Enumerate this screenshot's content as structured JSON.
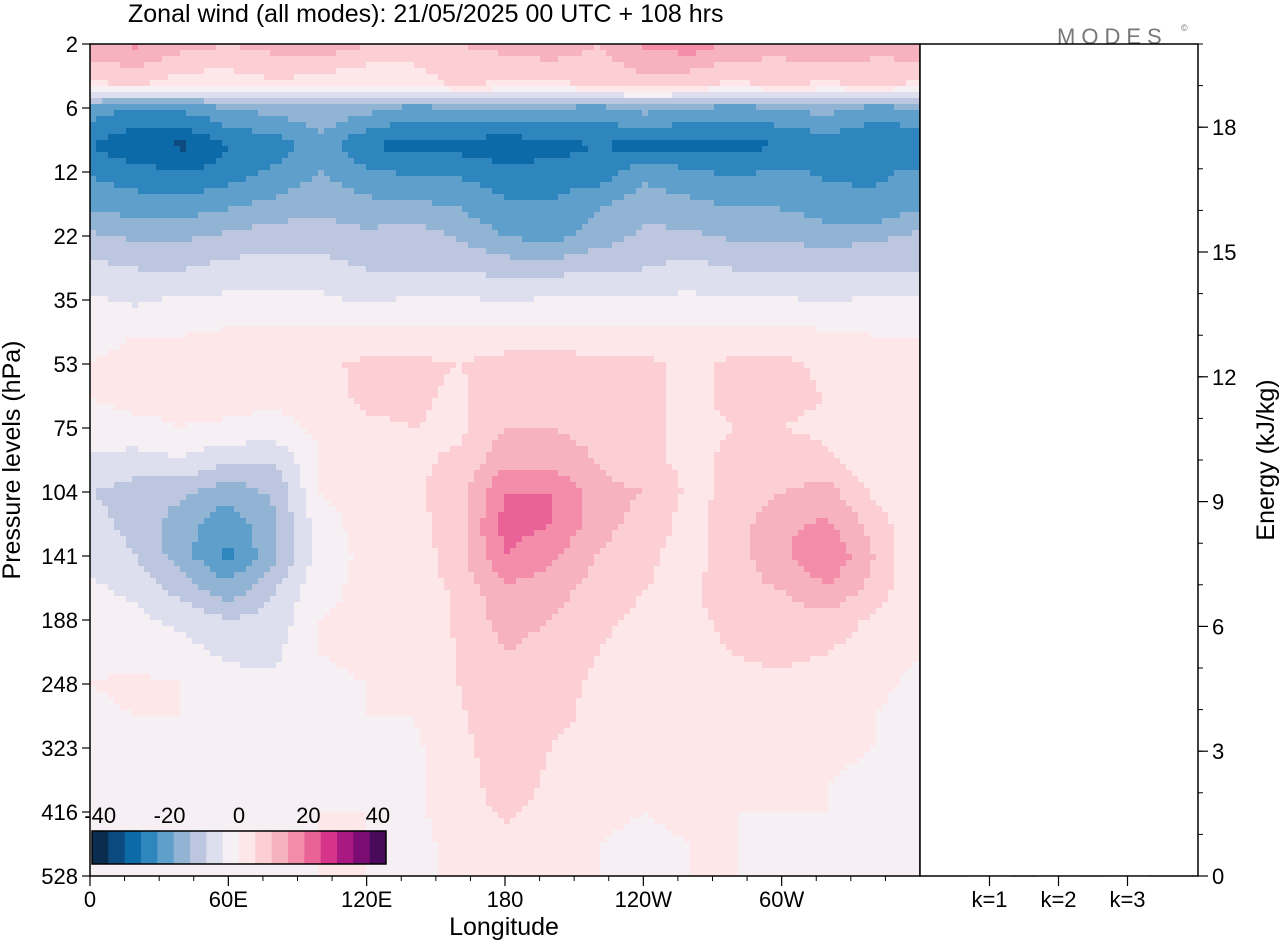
{
  "header": {
    "title": "Zonal wind (all modes):  21/05/2025  00 UTC  + 108 hrs",
    "logo_text": "MODES©"
  },
  "chart_data": [
    {
      "type": "heatmap",
      "title": "Zonal wind (all modes):  21/05/2025  00 UTC  + 108 hrs",
      "xlabel": "Longitude",
      "ylabel": "Pressure levels (hPa)",
      "x_ticks": [
        "0",
        "60E",
        "120E",
        "180",
        "120W",
        "60W"
      ],
      "y_ticks": [
        "2",
        "6",
        "12",
        "22",
        "35",
        "53",
        "75",
        "104",
        "141",
        "188",
        "248",
        "323",
        "416",
        "528"
      ],
      "xlim_deg": [
        0,
        360
      ],
      "colorbar": {
        "labels": [
          "-40",
          "-20",
          "0",
          "20",
          "40"
        ],
        "range": [
          -40,
          40
        ],
        "levels": [
          -40,
          -35,
          -30,
          -25,
          -20,
          -15,
          -10,
          -5,
          0,
          5,
          10,
          15,
          20,
          25,
          30,
          35,
          40
        ],
        "colors": [
          "#0a2d4f",
          "#0c4a7f",
          "#0d6aa8",
          "#2f86bf",
          "#5e9fcb",
          "#91b4d4",
          "#bcc6df",
          "#dedfee",
          "#f6eff4",
          "#fde7e8",
          "#fbcfd4",
          "#f7b2bf",
          "#f48daa",
          "#ea6398",
          "#d6338b",
          "#a91981",
          "#7a0c74",
          "#4a0a5c"
        ]
      },
      "approx_field": {
        "rows_hpa": [
          2,
          4,
          6,
          9,
          12,
          17,
          22,
          28,
          35,
          44,
          53,
          64,
          75,
          90,
          104,
          122,
          141,
          165,
          188,
          218,
          248,
          285,
          323,
          370,
          416,
          470,
          528
        ],
        "cols_deg": [
          0,
          20,
          40,
          60,
          80,
          100,
          120,
          140,
          160,
          180,
          200,
          220,
          240,
          260,
          280,
          300,
          320,
          340,
          360
        ],
        "values": [
          [
            14,
            16,
            12,
            10,
            12,
            14,
            10,
            8,
            10,
            12,
            14,
            10,
            16,
            18,
            14,
            12,
            16,
            12,
            14
          ],
          [
            4,
            6,
            2,
            2,
            4,
            2,
            0,
            2,
            6,
            4,
            4,
            6,
            8,
            6,
            4,
            6,
            4,
            6,
            4
          ],
          [
            -22,
            -26,
            -24,
            -20,
            -18,
            -16,
            -18,
            -22,
            -20,
            -18,
            -20,
            -22,
            -18,
            -20,
            -22,
            -20,
            -18,
            -22,
            -20
          ],
          [
            -30,
            -34,
            -36,
            -30,
            -28,
            -22,
            -30,
            -32,
            -32,
            -34,
            -32,
            -30,
            -32,
            -32,
            -32,
            -30,
            -28,
            -30,
            -30
          ],
          [
            -26,
            -28,
            -30,
            -28,
            -24,
            -20,
            -24,
            -26,
            -26,
            -28,
            -28,
            -28,
            -22,
            -24,
            -26,
            -24,
            -26,
            -26,
            -24
          ],
          [
            -20,
            -22,
            -22,
            -20,
            -18,
            -16,
            -18,
            -18,
            -20,
            -24,
            -24,
            -20,
            -16,
            -18,
            -20,
            -20,
            -22,
            -24,
            -20
          ],
          [
            -14,
            -16,
            -16,
            -14,
            -12,
            -12,
            -14,
            -12,
            -16,
            -20,
            -22,
            -18,
            -14,
            -14,
            -16,
            -16,
            -18,
            -16,
            -14
          ],
          [
            -8,
            -10,
            -10,
            -8,
            -8,
            -8,
            -10,
            -10,
            -10,
            -12,
            -12,
            -10,
            -10,
            -8,
            -10,
            -10,
            -10,
            -10,
            -10
          ],
          [
            -4,
            -6,
            -4,
            -4,
            -4,
            -4,
            -6,
            -4,
            -4,
            -6,
            -4,
            -4,
            -4,
            -4,
            -4,
            -4,
            -6,
            -4,
            -4
          ],
          [
            -1,
            0,
            0,
            1,
            1,
            2,
            2,
            2,
            2,
            2,
            2,
            2,
            2,
            2,
            2,
            2,
            1,
            0,
            0
          ],
          [
            0,
            1,
            1,
            2,
            1,
            4,
            6,
            6,
            5,
            7,
            8,
            6,
            6,
            4,
            6,
            6,
            4,
            2,
            0
          ],
          [
            0,
            1,
            1,
            2,
            1,
            3,
            6,
            6,
            4,
            8,
            9,
            7,
            6,
            4,
            6,
            6,
            5,
            2,
            0
          ],
          [
            -2,
            -1,
            0,
            -1,
            -2,
            1,
            4,
            5,
            4,
            10,
            10,
            8,
            6,
            4,
            5,
            5,
            4,
            2,
            0
          ],
          [
            -6,
            -8,
            -6,
            -10,
            -10,
            0,
            3,
            4,
            6,
            14,
            14,
            10,
            6,
            4,
            6,
            8,
            6,
            2,
            0
          ],
          [
            -10,
            -12,
            -14,
            -18,
            -14,
            0,
            2,
            4,
            8,
            20,
            20,
            12,
            10,
            4,
            6,
            10,
            12,
            4,
            0
          ],
          [
            -8,
            -12,
            -18,
            -24,
            -16,
            -2,
            2,
            3,
            8,
            22,
            20,
            12,
            8,
            3,
            8,
            14,
            16,
            8,
            0
          ],
          [
            -6,
            -10,
            -18,
            -26,
            -16,
            -2,
            1,
            2,
            8,
            20,
            16,
            10,
            6,
            3,
            8,
            14,
            20,
            10,
            0
          ],
          [
            -4,
            -6,
            -12,
            -18,
            -10,
            -1,
            1,
            2,
            6,
            14,
            12,
            8,
            5,
            4,
            8,
            10,
            14,
            8,
            0
          ],
          [
            -2,
            -4,
            -6,
            -10,
            -8,
            0,
            1,
            2,
            6,
            12,
            10,
            6,
            4,
            4,
            6,
            8,
            8,
            4,
            0
          ],
          [
            -1,
            -2,
            -3,
            -6,
            -6,
            0,
            1,
            1,
            5,
            10,
            8,
            5,
            3,
            4,
            5,
            6,
            5,
            2,
            0
          ],
          [
            0,
            1,
            0,
            -3,
            -4,
            -1,
            0,
            1,
            5,
            10,
            7,
            4,
            3,
            3,
            4,
            4,
            3,
            1,
            -1
          ],
          [
            -1,
            0,
            0,
            -2,
            -3,
            -1,
            0,
            0,
            4,
            10,
            6,
            4,
            2,
            3,
            3,
            3,
            2,
            0,
            -2
          ],
          [
            -1,
            -1,
            0,
            -2,
            -2,
            -1,
            0,
            -1,
            3,
            9,
            5,
            3,
            1,
            3,
            2,
            2,
            1,
            0,
            -2
          ],
          [
            -1,
            -1,
            0,
            -2,
            -2,
            -1,
            0,
            -1,
            2,
            8,
            4,
            2,
            1,
            2,
            1,
            1,
            0,
            -1,
            -2
          ],
          [
            -2,
            -1,
            0,
            -2,
            -2,
            0,
            0,
            -1,
            2,
            6,
            3,
            1,
            0,
            1,
            0,
            0,
            0,
            -1,
            -2
          ],
          [
            -2,
            -1,
            0,
            -2,
            -2,
            0,
            0,
            -1,
            1,
            3,
            2,
            0,
            -1,
            0,
            0,
            -1,
            0,
            -1,
            -2
          ],
          [
            -2,
            -1,
            0,
            -2,
            -2,
            0,
            0,
            -1,
            1,
            2,
            1,
            0,
            -1,
            0,
            0,
            -1,
            0,
            -1,
            -2
          ]
        ]
      }
    },
    {
      "type": "bar",
      "categories": [
        "k=1",
        "k=2",
        "k=3"
      ],
      "values": [
        0.02,
        0.02,
        0.02
      ],
      "ylabel": "Energy (kJ/kg)",
      "ylim": [
        0,
        20
      ],
      "y_ticks": [
        "0",
        "3",
        "6",
        "9",
        "12",
        "15",
        "18"
      ]
    }
  ]
}
